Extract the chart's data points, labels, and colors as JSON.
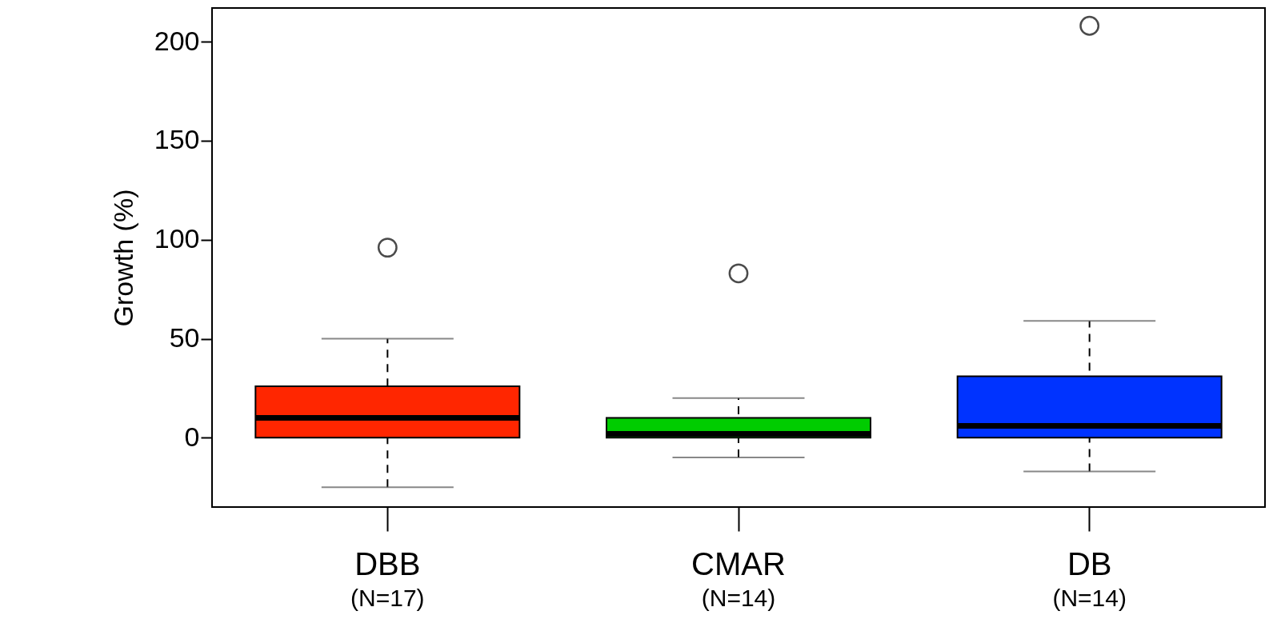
{
  "chart_data": {
    "type": "box",
    "ylabel": "Growth (%)",
    "categories": [
      "DBB",
      "CMAR",
      "DB"
    ],
    "colors": [
      "#ff2600",
      "#00cc00",
      "#0033ff"
    ],
    "boxes": [
      {
        "low": -25,
        "q1": 0,
        "median": 10,
        "q3": 26,
        "high": 50,
        "outliers": [
          96
        ]
      },
      {
        "low": -10,
        "q1": 0,
        "median": 2,
        "q3": 10,
        "high": 20,
        "outliers": [
          83
        ]
      },
      {
        "low": -17,
        "q1": 0,
        "median": 6,
        "q3": 31,
        "high": 59,
        "outliers": [
          208
        ]
      }
    ],
    "ylim": [
      -35,
      217
    ],
    "yticks": [
      0,
      50,
      100,
      150,
      200
    ],
    "grid": false,
    "annotations": [
      "(N=17)",
      "(N=14)",
      "(N=14)"
    ]
  }
}
